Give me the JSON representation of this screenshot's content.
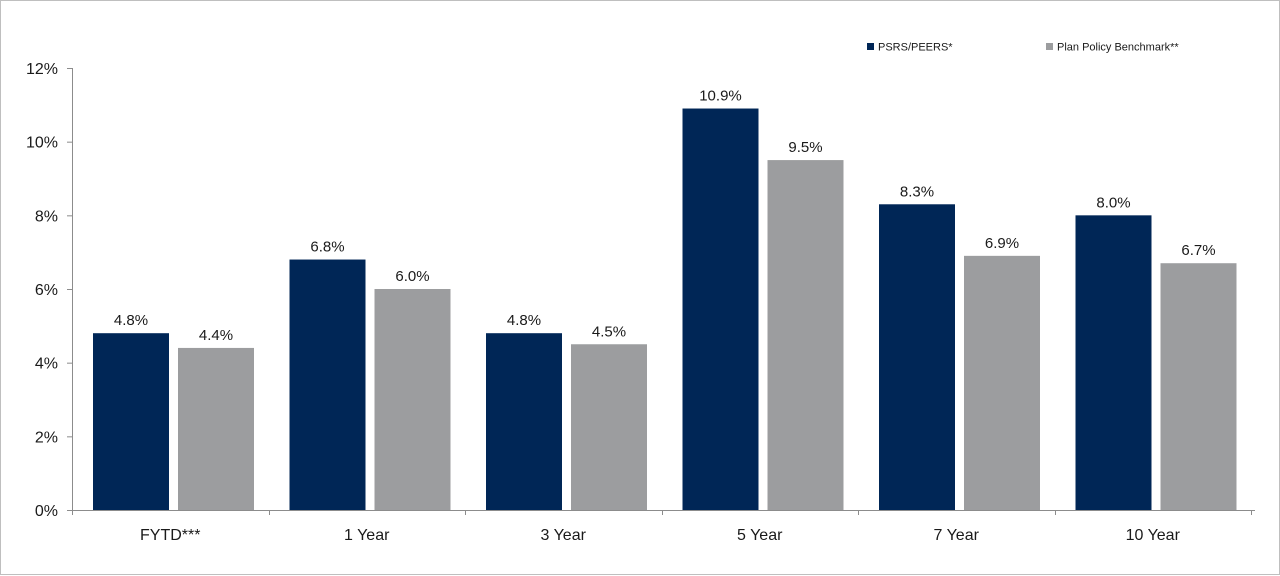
{
  "chart_data": {
    "type": "bar",
    "categories": [
      "FYTD***",
      "1 Year",
      "3 Year",
      "5 Year",
      "7 Year",
      "10 Year"
    ],
    "series": [
      {
        "name": "PSRS/PEERS*",
        "color": "#002656",
        "values": [
          4.8,
          6.8,
          4.8,
          10.9,
          8.3,
          8.0
        ],
        "labels": [
          "4.8%",
          "6.8%",
          "4.8%",
          "10.9%",
          "8.3%",
          "8.0%"
        ]
      },
      {
        "name": "Plan Policy Benchmark**",
        "color": "#9c9d9f",
        "values": [
          4.4,
          6.0,
          4.5,
          9.5,
          6.9,
          6.7
        ],
        "labels": [
          "4.4%",
          "6.0%",
          "4.5%",
          "9.5%",
          "6.9%",
          "6.7%"
        ]
      }
    ],
    "yticks": [
      0,
      2,
      4,
      6,
      8,
      10,
      12
    ],
    "ytick_labels": [
      "0%",
      "2%",
      "4%",
      "6%",
      "8%",
      "10%",
      "12%"
    ],
    "ylim": [
      0,
      12
    ],
    "grid": false,
    "legend_position": "top-right"
  }
}
